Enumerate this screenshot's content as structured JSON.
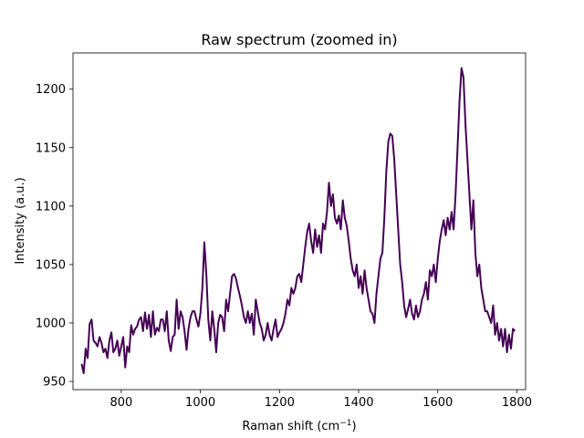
{
  "chart_data": {
    "type": "line",
    "title": "Raw spectrum (zoomed in)",
    "xlabel_main": "Raman shift (cm",
    "xlabel_sup": "−1",
    "xlabel_close": ")",
    "ylabel": "Intensity (a.u.)",
    "xlim": [
      678,
      1822
    ],
    "ylim": [
      943,
      1231
    ],
    "xticks": [
      800,
      1000,
      1200,
      1400,
      1600,
      1800
    ],
    "yticks": [
      950,
      1000,
      1050,
      1100,
      1150,
      1200
    ],
    "grid": false,
    "line_color": "#440154",
    "series": [
      {
        "x": [
          700,
          705,
          710,
          715,
          720,
          725,
          730,
          735,
          740,
          745,
          750,
          755,
          760,
          765,
          770,
          775,
          780,
          785,
          790,
          795,
          800,
          805,
          810,
          815,
          820,
          825,
          830,
          835,
          840,
          845,
          850,
          855,
          860,
          865,
          870,
          875,
          880,
          885,
          890,
          895,
          900,
          905,
          910,
          915,
          920,
          925,
          930,
          935,
          940,
          945,
          950,
          955,
          960,
          965,
          970,
          975,
          980,
          985,
          990,
          995,
          1000,
          1005,
          1010,
          1015,
          1020,
          1025,
          1030,
          1035,
          1040,
          1045,
          1050,
          1055,
          1060,
          1065,
          1070,
          1075,
          1080,
          1085,
          1090,
          1095,
          1100,
          1105,
          1110,
          1115,
          1120,
          1125,
          1130,
          1135,
          1140,
          1145,
          1150,
          1155,
          1160,
          1165,
          1170,
          1175,
          1180,
          1185,
          1190,
          1195,
          1200,
          1205,
          1210,
          1215,
          1220,
          1225,
          1230,
          1235,
          1240,
          1245,
          1250,
          1255,
          1260,
          1265,
          1270,
          1275,
          1280,
          1285,
          1290,
          1295,
          1300,
          1305,
          1310,
          1315,
          1320,
          1325,
          1330,
          1335,
          1340,
          1345,
          1350,
          1355,
          1360,
          1365,
          1370,
          1375,
          1380,
          1385,
          1390,
          1395,
          1400,
          1405,
          1410,
          1415,
          1420,
          1425,
          1430,
          1435,
          1440,
          1445,
          1450,
          1455,
          1460,
          1465,
          1470,
          1475,
          1480,
          1485,
          1490,
          1495,
          1500,
          1505,
          1510,
          1515,
          1520,
          1525,
          1530,
          1535,
          1540,
          1545,
          1550,
          1555,
          1560,
          1565,
          1570,
          1575,
          1580,
          1585,
          1590,
          1595,
          1600,
          1605,
          1610,
          1615,
          1620,
          1625,
          1630,
          1635,
          1640,
          1645,
          1650,
          1655,
          1660,
          1665,
          1670,
          1675,
          1680,
          1685,
          1690,
          1695,
          1700,
          1705,
          1710,
          1715,
          1720,
          1725,
          1730,
          1735,
          1740,
          1745,
          1750,
          1755,
          1760,
          1765,
          1770,
          1775,
          1780,
          1785,
          1790,
          1795
        ],
        "y": [
          965,
          957,
          978,
          970,
          999,
          1003,
          985,
          983,
          980,
          988,
          983,
          975,
          978,
          970,
          985,
          992,
          975,
          978,
          985,
          972,
          980,
          988,
          962,
          980,
          975,
          998,
          990,
          995,
          997,
          1003,
          1005,
          993,
          1009,
          995,
          1007,
          988,
          1010,
          990,
          996,
          993,
          1003,
          1003,
          993,
          1010,
          985,
          976,
          988,
          990,
          1020,
          995,
          1010,
          1005,
          993,
          977,
          995,
          1005,
          1010,
          1010,
          1003,
          997,
          1008,
          1030,
          1069,
          1042,
          1003,
          985,
          1010,
          995,
          975,
          1000,
          1007,
          1005,
          993,
          1020,
          1010,
          1025,
          1040,
          1042,
          1038,
          1030,
          1023,
          1015,
          1005,
          1000,
          1010,
          1000,
          1008,
          990,
          1020,
          1010,
          1000,
          995,
          985,
          990,
          1000,
          990,
          985,
          995,
          1003,
          988,
          992,
          995,
          1000,
          1008,
          1020,
          1015,
          1030,
          1025,
          1030,
          1040,
          1042,
          1035,
          1050,
          1065,
          1078,
          1085,
          1070,
          1060,
          1080,
          1065,
          1075,
          1060,
          1085,
          1080,
          1095,
          1120,
          1100,
          1110,
          1090,
          1085,
          1092,
          1080,
          1105,
          1090,
          1083,
          1070,
          1055,
          1045,
          1040,
          1050,
          1030,
          1040,
          1025,
          1045,
          1030,
          1020,
          1010,
          1008,
          1000,
          1025,
          1040,
          1055,
          1060,
          1090,
          1130,
          1155,
          1162,
          1160,
          1140,
          1110,
          1080,
          1050,
          1035,
          1015,
          1005,
          1012,
          1020,
          1008,
          1003,
          1015,
          1005,
          1010,
          1020,
          1025,
          1035,
          1020,
          1045,
          1040,
          1050,
          1035,
          1055,
          1070,
          1080,
          1088,
          1075,
          1090,
          1080,
          1095,
          1080,
          1110,
          1150,
          1190,
          1218,
          1210,
          1170,
          1140,
          1110,
          1080,
          1105,
          1060,
          1040,
          1050,
          1030,
          1020,
          1010,
          1010,
          1005,
          1000,
          1015,
          990,
          1000,
          985,
          995,
          980,
          995,
          975,
          990,
          978,
          995,
          993
        ]
      }
    ]
  }
}
